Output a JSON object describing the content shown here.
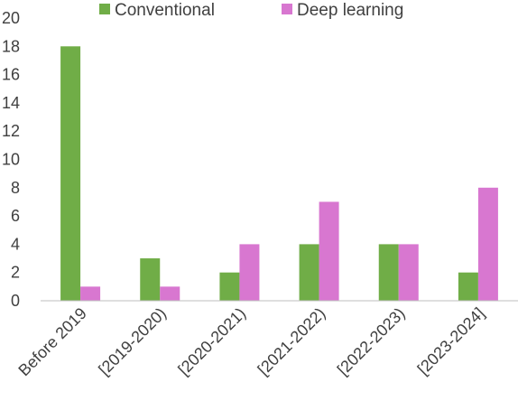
{
  "chart_data": {
    "type": "bar",
    "title": "",
    "xlabel": "",
    "ylabel": "",
    "ylim": [
      0,
      20
    ],
    "yticks": [
      0,
      2,
      4,
      6,
      8,
      10,
      12,
      14,
      16,
      18,
      20
    ],
    "grid": false,
    "legend_position": "top",
    "categories": [
      "Before 2019",
      "[2019-2020)",
      "[2020-2021)",
      "[2021-2022)",
      "[2022-2023)",
      "[2023-2024]"
    ],
    "series": [
      {
        "name": "Conventional",
        "color": "#70ad47",
        "values": [
          18,
          3,
          2,
          4,
          4,
          2
        ]
      },
      {
        "name": "Deep learning",
        "color": "#d877d0",
        "values": [
          1,
          1,
          4,
          7,
          4,
          8
        ]
      }
    ]
  }
}
